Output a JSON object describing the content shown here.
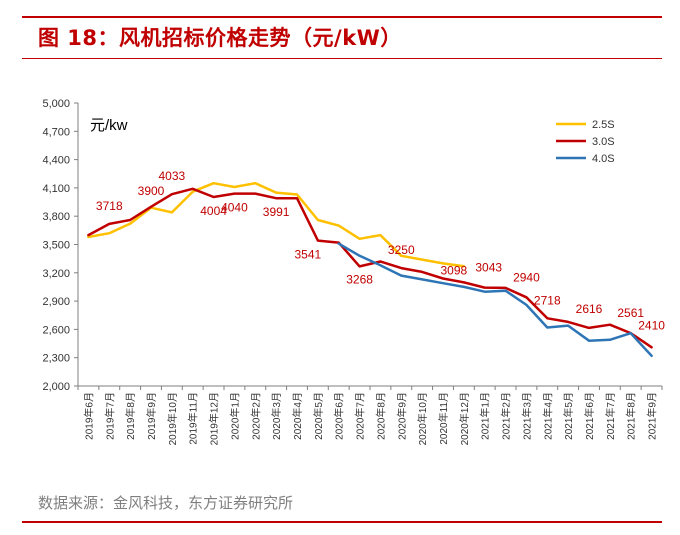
{
  "figure": {
    "title": "图 18：风机招标价格走势（元/kW）",
    "source": "数据来源：金风科技，东方证券研究所"
  },
  "colors": {
    "accent": "#c00000",
    "series_2_5S": "#ffc000",
    "series_3_0S": "#c00000",
    "series_4_0S": "#2e75b6",
    "label_color": "#c00000"
  },
  "chart_data": {
    "type": "line",
    "unit_label": "元/kw",
    "ylim": [
      2000,
      5000
    ],
    "yticks": [
      "5,000",
      "4,700",
      "4,400",
      "4,100",
      "3,800",
      "3,500",
      "3,200",
      "2,900",
      "2,600",
      "2,300",
      "2,000"
    ],
    "ytick_values": [
      5000,
      4700,
      4400,
      4100,
      3800,
      3500,
      3200,
      2900,
      2600,
      2300,
      2000
    ],
    "categories": [
      "2019年6月",
      "2019年7月",
      "2019年8月",
      "2019年9月",
      "2019年10月",
      "2019年11月",
      "2019年12月",
      "2020年1月",
      "2020年2月",
      "2020年3月",
      "2020年4月",
      "2020年5月",
      "2020年6月",
      "2020年7月",
      "2020年8月",
      "2020年9月",
      "2020年10月",
      "2020年11月",
      "2020年12月",
      "2021年1月",
      "2021年2月",
      "2021年3月",
      "2021年4月",
      "2021年5月",
      "2021年6月",
      "2021年7月",
      "2021年8月",
      "2021年9月"
    ],
    "x_tick_labels": [
      "2019年6月",
      "2019年7月",
      "2019年8月",
      "2019年9月",
      "2019年10月",
      "2019年11月",
      "2019年12月",
      "2020年1月",
      "2020年2月",
      "2020年3月",
      "2020年4月",
      "2020年5月",
      "2020年6月",
      "2020年7月",
      "2020年8月",
      "2020年9月",
      "2020年10月",
      "2020年11月",
      "2020年12月",
      "2021年1月",
      "2021年2月",
      "2021年3月",
      "2021年4月",
      "2021年5月",
      "2021年6月",
      "2021年7月",
      "2021年8月",
      "2021年9月"
    ],
    "legend_position": "top-right",
    "grid": false,
    "series": [
      {
        "name": "2.5S",
        "color": "#ffc000",
        "x": [
          0,
          1,
          2,
          3,
          4,
          5,
          6,
          7,
          8,
          9,
          10,
          11,
          12,
          13,
          14,
          15,
          16,
          17,
          18
        ],
        "values": [
          3580,
          3620,
          3720,
          3890,
          3840,
          4060,
          4150,
          4110,
          4150,
          4050,
          4030,
          3760,
          3700,
          3560,
          3600,
          3380,
          3340,
          3300,
          3270
        ]
      },
      {
        "name": "3.0S",
        "color": "#c00000",
        "x": [
          0,
          1,
          2,
          3,
          4,
          5,
          6,
          7,
          8,
          9,
          10,
          11,
          12,
          13,
          14,
          15,
          16,
          17,
          18,
          19,
          20,
          21,
          22,
          23,
          24,
          25,
          26,
          27
        ],
        "values": [
          3600,
          3718,
          3760,
          3900,
          4033,
          4090,
          4004,
          4040,
          4040,
          3991,
          3991,
          3541,
          3520,
          3268,
          3320,
          3250,
          3210,
          3140,
          3098,
          3043,
          3040,
          2940,
          2718,
          2680,
          2616,
          2650,
          2561,
          2410
        ]
      },
      {
        "name": "4.0S",
        "color": "#2e75b6",
        "x": [
          12,
          13,
          14,
          15,
          16,
          17,
          18,
          19,
          20,
          21,
          22,
          23,
          24,
          25,
          26,
          27
        ],
        "values": [
          3510,
          3380,
          3280,
          3170,
          3130,
          3090,
          3050,
          3000,
          3010,
          2860,
          2620,
          2640,
          2480,
          2490,
          2560,
          2320
        ]
      }
    ],
    "data_labels": [
      {
        "text": "3718",
        "x": 1,
        "y": 3718
      },
      {
        "text": "3900",
        "x": 3,
        "y": 3900
      },
      {
        "text": "4033",
        "x": 4,
        "y": 4033
      },
      {
        "text": "4004",
        "x": 6,
        "y": 4004
      },
      {
        "text": "4040",
        "x": 7,
        "y": 4040
      },
      {
        "text": "3991",
        "x": 9,
        "y": 3991
      },
      {
        "text": "3541",
        "x": 11,
        "y": 3541
      },
      {
        "text": "3268",
        "x": 13,
        "y": 3268
      },
      {
        "text": "3250",
        "x": 15,
        "y": 3250
      },
      {
        "text": "3098",
        "x": 18,
        "y": 3098
      },
      {
        "text": "3043",
        "x": 19,
        "y": 3043
      },
      {
        "text": "2940",
        "x": 21,
        "y": 2940
      },
      {
        "text": "2718",
        "x": 22,
        "y": 2718
      },
      {
        "text": "2616",
        "x": 24,
        "y": 2616
      },
      {
        "text": "2561",
        "x": 26,
        "y": 2561
      },
      {
        "text": "2410",
        "x": 27,
        "y": 2410
      }
    ]
  }
}
